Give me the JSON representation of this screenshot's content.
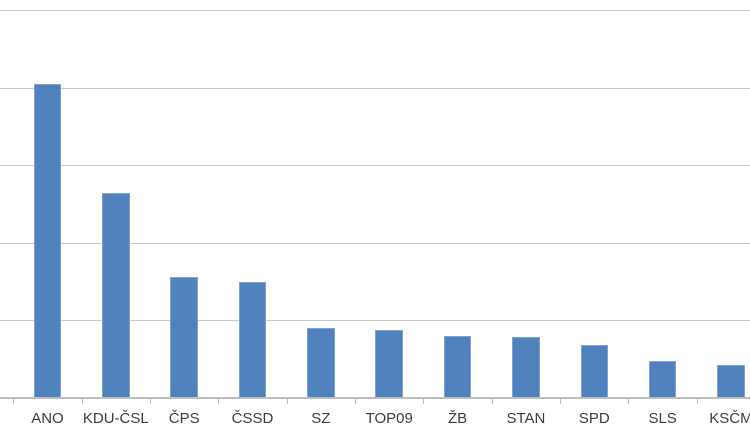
{
  "chart_data": {
    "type": "bar",
    "title": "",
    "xlabel": "",
    "ylabel": "",
    "categories": [
      "ANO",
      "KDU-ČSL",
      "ČPS",
      "ČSSD",
      "SZ",
      "TOP09",
      "ŽB",
      "STAN",
      "SPD",
      "SLS",
      "KSČM"
    ],
    "values": [
      20.2,
      13.2,
      7.8,
      7.5,
      4.5,
      4.4,
      4.0,
      3.9,
      3.4,
      2.4,
      2.1
    ],
    "ylim": [
      0,
      25
    ],
    "gridline_values": [
      5,
      10,
      15,
      20,
      25
    ],
    "grid": true,
    "legend": false,
    "y_axis_labels_visible": false,
    "bar_color": "#4f81bd",
    "gridline_color": "#c9c9c9",
    "axis_line_color": "#bdbdbd",
    "label_color": "#3d3d3d"
  }
}
